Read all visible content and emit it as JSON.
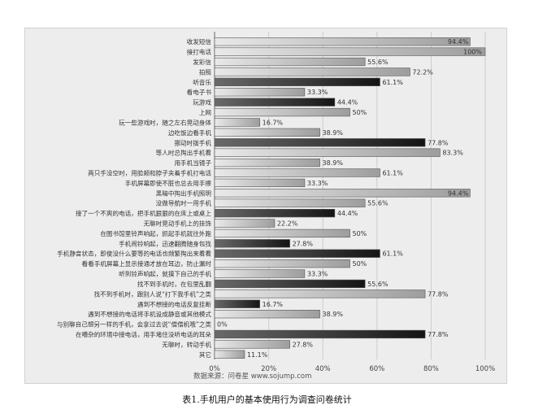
{
  "caption": "表1.手机用户的基本使用行为调查问卷统计",
  "source_note": "数据来源：问卷星 www.sojump.com",
  "chart_data": {
    "type": "bar",
    "orientation": "horizontal",
    "title": "",
    "xlabel": "",
    "ylabel": "",
    "xlim": [
      0,
      100
    ],
    "x_ticks": [
      "0%",
      "20%",
      "40%",
      "60%",
      "80%",
      "100%"
    ],
    "grid": true,
    "legend": "none",
    "categories": [
      "收发短信",
      "接打电话",
      "发彩信",
      "拍照",
      "听音乐",
      "看电子书",
      "玩游戏",
      "上网",
      "玩一些游戏时，随之左右晃动身体",
      "边吃饭边看手机",
      "挪动时拨手机",
      "等人时总掏出手机看",
      "用手机当镜子",
      "两只手没空时，用脸颊和脖子夹着手机打电话",
      "手机屏幕即使不脏也总去用手擦",
      "黑暗中掏出手机照明",
      "没做导航时一用手机",
      "接了一个不爽的电话，把手机狠狠的在床上或桌上",
      "无聊时晃动手机上的挂饰",
      "在图书馆里铃声响起，抓起手机就往外跑",
      "手机闹铃响起，迅速翻腾随身包找",
      "手机静音状态，即使没什么要等的电话也频繁掏出来看看",
      "看看手机屏幕上显示接通才放在耳边，防止漏时",
      "听到铃声响起，就摸下自己的手机",
      "找不到手机时，在包里乱翻",
      "找不到手机时，跟别人说“打下我手机”之类",
      "遇到不想接的电话反复挂断",
      "遇到不想接的电话将手机设成静音或其他模式",
      "与别聊自己想另一样的手机，会拿过去说“借借机哦”之类",
      "在嘈杂的环境中接电话，用手堵住没听电话的耳朵",
      "无聊时，转动手机",
      "其它"
    ],
    "values": [
      94.4,
      100,
      55.6,
      72.2,
      61.1,
      33.3,
      44.4,
      50,
      16.7,
      38.9,
      77.8,
      83.3,
      38.9,
      61.1,
      33.3,
      94.4,
      55.6,
      44.4,
      22.2,
      50,
      27.8,
      61.1,
      50,
      33.3,
      55.6,
      77.8,
      16.7,
      38.9,
      0,
      77.8,
      27.8,
      11.1
    ],
    "value_labels": [
      "94.4%",
      "100%",
      "55.6%",
      "72.2%",
      "61.1%",
      "33.3%",
      "44.4%",
      "50%",
      "16.7%",
      "38.9%",
      "77.8%",
      "83.3%",
      "38.9%",
      "61.1%",
      "33.3%",
      "94.4%",
      "55.6%",
      "44.4%",
      "22.2%",
      "50%",
      "27.8%",
      "61.1%",
      "50%",
      "33.3%",
      "55.6%",
      "77.8%",
      "16.7%",
      "38.9%",
      "0%",
      "77.8%",
      "27.8%",
      "11.1%"
    ],
    "bar_shades": [
      "light",
      "light",
      "light",
      "light",
      "dark",
      "light",
      "dark",
      "light",
      "light",
      "light",
      "dark",
      "light",
      "light",
      "light",
      "light",
      "light",
      "light",
      "dark",
      "light",
      "light",
      "dark",
      "dark",
      "light",
      "light",
      "dark",
      "light",
      "dark",
      "light",
      "light",
      "dark",
      "light",
      "light"
    ],
    "colors": {
      "light_bar": "#c9c9c9",
      "dark_bar": "#2a2a2a",
      "bar_edge": "#555555",
      "grid": "#cccccc",
      "background": "#ededed"
    }
  }
}
